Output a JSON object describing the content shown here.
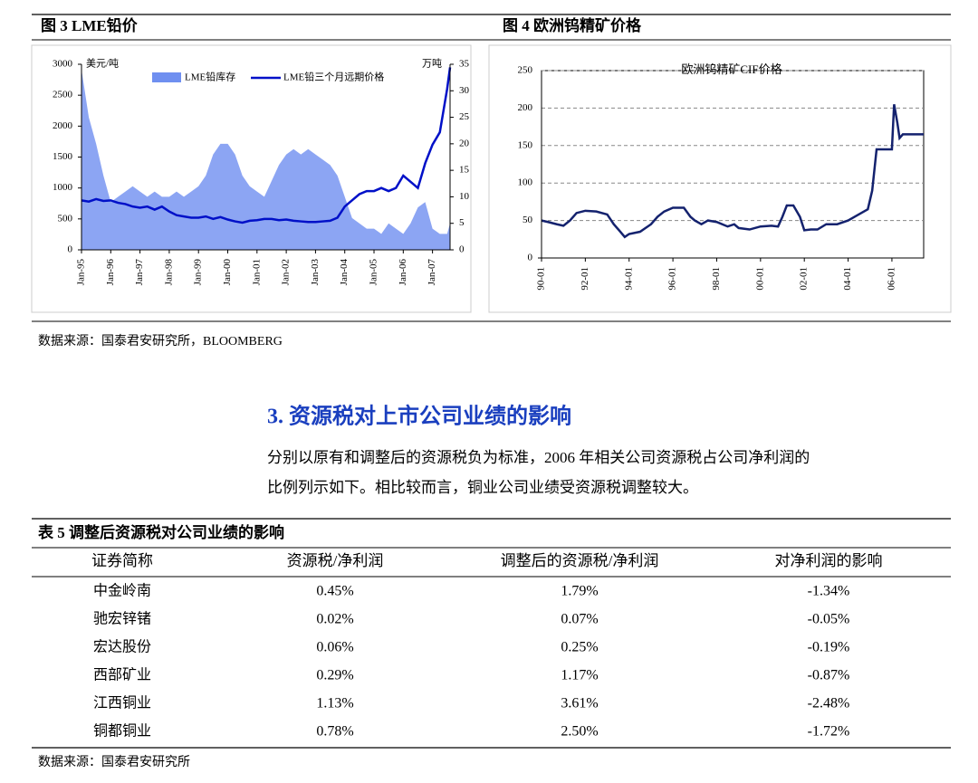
{
  "chart_data": [
    {
      "type": "line",
      "title": "图 3 LME铅价",
      "y_label": "美元/吨",
      "y2_label": "万吨",
      "x": [
        1995,
        1995.25,
        1995.5,
        1995.75,
        1996,
        1996.25,
        1996.5,
        1996.75,
        1997,
        1997.25,
        1997.5,
        1997.75,
        1998,
        1998.25,
        1998.5,
        1998.75,
        1999,
        1999.25,
        1999.5,
        1999.75,
        2000,
        2000.25,
        2000.5,
        2000.75,
        2001,
        2001.25,
        2001.5,
        2001.75,
        2002,
        2002.25,
        2002.5,
        2002.75,
        2003,
        2003.25,
        2003.5,
        2003.75,
        2004,
        2004.25,
        2004.5,
        2004.75,
        2005,
        2005.25,
        2005.5,
        2005.75,
        2006,
        2006.25,
        2006.5,
        2006.75,
        2007,
        2007.25,
        2007.5,
        2007.6
      ],
      "xlim": [
        1995,
        2007.6
      ],
      "xticks": [
        {
          "value": 1995,
          "label": "Jan-95"
        },
        {
          "value": 1996,
          "label": "Jan-96"
        },
        {
          "value": 1997,
          "label": "Jan-97"
        },
        {
          "value": 1998,
          "label": "Jan-98"
        },
        {
          "value": 1999,
          "label": "Jan-99"
        },
        {
          "value": 2000,
          "label": "Jan-00"
        },
        {
          "value": 2001,
          "label": "Jan-01"
        },
        {
          "value": 2002,
          "label": "Jan-02"
        },
        {
          "value": 2003,
          "label": "Jan-03"
        },
        {
          "value": 2004,
          "label": "Jan-04"
        },
        {
          "value": 2005,
          "label": "Jan-05"
        },
        {
          "value": 2006,
          "label": "Jan-06"
        },
        {
          "value": 2007,
          "label": "Jan-07"
        }
      ],
      "ylim": [
        0,
        3000
      ],
      "yticks": [
        0,
        500,
        1000,
        1500,
        2000,
        2500,
        3000
      ],
      "y2lim": [
        0,
        35
      ],
      "y2ticks": [
        0,
        5,
        10,
        15,
        20,
        25,
        30,
        35
      ],
      "series": [
        {
          "name": "LME铅库存",
          "color": "#6f8ff0",
          "area": true,
          "axis": "y2",
          "values": [
            34,
            25,
            20,
            14,
            9,
            10,
            11,
            12,
            11,
            10,
            11,
            10,
            10,
            11,
            10,
            11,
            12,
            14,
            18,
            20,
            20,
            18,
            14,
            12,
            11,
            10,
            13,
            16,
            18,
            19,
            18,
            19,
            18,
            17,
            16,
            14,
            10,
            6,
            5,
            4,
            4,
            3,
            5,
            4,
            3,
            5,
            8,
            9,
            4,
            3,
            3,
            5
          ]
        },
        {
          "name": "LME铅三个月远期价格",
          "color": "#0010c8",
          "values": [
            800,
            780,
            820,
            790,
            800,
            760,
            740,
            700,
            680,
            700,
            650,
            700,
            620,
            560,
            540,
            520,
            520,
            540,
            500,
            530,
            490,
            460,
            440,
            470,
            480,
            500,
            500,
            480,
            490,
            470,
            460,
            450,
            450,
            460,
            470,
            520,
            700,
            800,
            900,
            950,
            950,
            1000,
            950,
            1000,
            1200,
            1100,
            1000,
            1400,
            1700,
            1900,
            2600,
            2950
          ]
        }
      ]
    },
    {
      "type": "line",
      "title": "图 4 欧洲钨精矿价格",
      "subtitle": "欧洲钨精矿CIF价格",
      "grid": true,
      "x": [
        1990,
        1990.3,
        1990.7,
        1991,
        1991.3,
        1991.6,
        1992,
        1992.5,
        1993,
        1993.3,
        1993.6,
        1993.8,
        1994,
        1994.5,
        1995,
        1995.3,
        1995.6,
        1996,
        1996.5,
        1996.8,
        1997,
        1997.3,
        1997.6,
        1998,
        1998.5,
        1998.8,
        1999,
        1999.5,
        2000,
        2000.5,
        2000.8,
        2001,
        2001.2,
        2001.5,
        2001.8,
        2002,
        2002.3,
        2002.6,
        2003,
        2003.5,
        2004,
        2004.3,
        2004.6,
        2004.9,
        2005.1,
        2005.3,
        2005.6,
        2006,
        2006.1,
        2006.25,
        2006.35,
        2006.5,
        2007.45
      ],
      "xlim": [
        1990,
        2007.45
      ],
      "xticks": [
        {
          "value": 1990,
          "label": "90-01"
        },
        {
          "value": 1992,
          "label": "92-01"
        },
        {
          "value": 1994,
          "label": "94-01"
        },
        {
          "value": 1996,
          "label": "96-01"
        },
        {
          "value": 1998,
          "label": "98-01"
        },
        {
          "value": 2000,
          "label": "00-01"
        },
        {
          "value": 2002,
          "label": "02-01"
        },
        {
          "value": 2004,
          "label": "04-01"
        },
        {
          "value": 2006,
          "label": "06-01"
        }
      ],
      "ylim": [
        0,
        250
      ],
      "yticks": [
        0,
        50,
        100,
        150,
        200,
        250
      ],
      "series": [
        {
          "color": "#14226e",
          "values": [
            50,
            48,
            45,
            43,
            50,
            60,
            63,
            62,
            58,
            45,
            35,
            28,
            32,
            35,
            45,
            55,
            62,
            67,
            67,
            55,
            50,
            45,
            50,
            48,
            42,
            45,
            40,
            38,
            42,
            43,
            42,
            55,
            70,
            70,
            55,
            37,
            38,
            38,
            45,
            45,
            50,
            55,
            60,
            65,
            90,
            145,
            145,
            145,
            205,
            180,
            160,
            165,
            165
          ]
        }
      ]
    }
  ],
  "source1": "数据来源：国泰君安研究所，BLOOMBERG",
  "section": {
    "heading": "3.  资源税对上市公司业绩的影响",
    "paragraph": [
      "分别以原有和调整后的资源税负为标准，2006 年相关公司资源税占公司净利润的",
      "比例列示如下。相比较而言，铜业公司业绩受资源税调整较大。"
    ]
  },
  "table": {
    "caption": "表 5  调整后资源税对公司业绩的影响",
    "header": [
      "证券简称",
      "资源税/净利润",
      "调整后的资源税/净利润",
      "对净利润的影响"
    ],
    "rows": [
      [
        "中金岭南",
        "0.45%",
        "1.79%",
        "-1.34%"
      ],
      [
        "驰宏锌锗",
        "0.02%",
        "0.07%",
        "-0.05%"
      ],
      [
        "宏达股份",
        "0.06%",
        "0.25%",
        "-0.19%"
      ],
      [
        "西部矿业",
        "0.29%",
        "1.17%",
        "-0.87%"
      ],
      [
        "江西铜业",
        "1.13%",
        "3.61%",
        "-2.48%"
      ],
      [
        "铜都铜业",
        "0.78%",
        "2.50%",
        "-1.72%"
      ]
    ]
  },
  "source2": "数据来源：国泰君安研究所"
}
